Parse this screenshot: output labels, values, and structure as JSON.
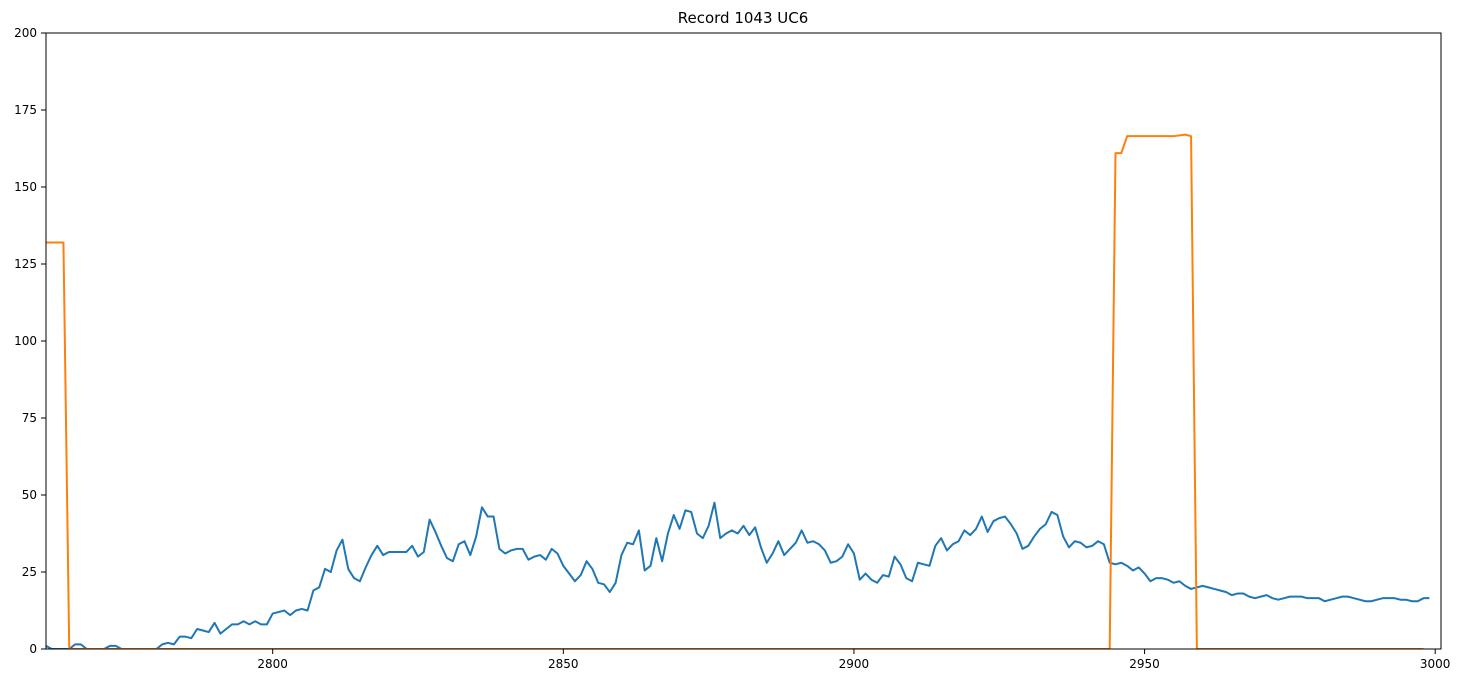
{
  "chart_data": {
    "type": "line",
    "title": "Record 1043 UC6",
    "xlabel": "",
    "ylabel": "",
    "xlim": [
      2761,
      3001
    ],
    "ylim": [
      0,
      200
    ],
    "xticks": [
      2800,
      2850,
      2900,
      2950,
      3000
    ],
    "yticks": [
      0,
      25,
      50,
      75,
      100,
      125,
      150,
      175,
      200
    ],
    "grid": false,
    "colors": [
      "#1f77b4",
      "#ff7f0e"
    ],
    "series": [
      {
        "x_start": 2761,
        "x_step": 1,
        "values": [
          1,
          0,
          0,
          0,
          0,
          1.5,
          1.5,
          0,
          0,
          0,
          0,
          1,
          1,
          0,
          0,
          0,
          0,
          0,
          0,
          0,
          1.5,
          2,
          1.5,
          4,
          4,
          3.5,
          6.5,
          6,
          5.5,
          8.5,
          5,
          6.5,
          8,
          8,
          9,
          8,
          9,
          8,
          8,
          11.5,
          12,
          12.5,
          11,
          12.5,
          13,
          12.5,
          19,
          20,
          26,
          25,
          32,
          35.5,
          26,
          23,
          22,
          26.5,
          30.5,
          33.5,
          30.5,
          31.5,
          31.5,
          31.5,
          31.5,
          33.5,
          30,
          31.5,
          42,
          38,
          33.5,
          29.5,
          28.5,
          34,
          35,
          30.5,
          36.5,
          46,
          43,
          43,
          32.5,
          31,
          32,
          32.5,
          32.5,
          29,
          30,
          30.5,
          29,
          32.5,
          31,
          27,
          24.5,
          22,
          24,
          28.5,
          26,
          21.5,
          21,
          18.5,
          21.5,
          30.5,
          34.5,
          34,
          38.5,
          25.5,
          27,
          36,
          28.5,
          37.5,
          43.5,
          39,
          45,
          44.5,
          37.5,
          36,
          40,
          47.5,
          36,
          37.5,
          38.5,
          37.5,
          40,
          37,
          39.5,
          33,
          28,
          31,
          35,
          30.5,
          32.5,
          34.5,
          38.5,
          34.5,
          35,
          34,
          32,
          28,
          28.5,
          30,
          34,
          31,
          22.5,
          24.5,
          22.5,
          21.5,
          24,
          23.5,
          30,
          27.5,
          23,
          22,
          28,
          27.5,
          27,
          33.5,
          36,
          32,
          34,
          35,
          38.5,
          37,
          39,
          43,
          38,
          41.5,
          42.5,
          43,
          40.5,
          37.5,
          32.5,
          33.5,
          36.5,
          39,
          40.5,
          44.5,
          43.5,
          36.5,
          33,
          35,
          34.5,
          33,
          33.5,
          35,
          34,
          28,
          27.5,
          28,
          27,
          25.5,
          26.5,
          24.5,
          22,
          23,
          23,
          22.5,
          21.5,
          22,
          20.5,
          19.5,
          20,
          20.5,
          20,
          19.5,
          19,
          18.5,
          17.5,
          18,
          18,
          17,
          16.5,
          17,
          17.5,
          16.5,
          16,
          16.5,
          17,
          17,
          17,
          16.5,
          16.5,
          16.5,
          15.5,
          16,
          16.5,
          17,
          17,
          16.5,
          16,
          15.5,
          15.5,
          16,
          16.5,
          16.5,
          16.5,
          16,
          16,
          15.5,
          15.5,
          16.5,
          16.5
        ]
      },
      {
        "points": [
          [
            2761,
            132
          ],
          [
            2764,
            132
          ],
          [
            2764,
            132
          ],
          [
            2765,
            0
          ],
          [
            2944,
            0
          ],
          [
            2945,
            161
          ],
          [
            2946,
            161
          ],
          [
            2947,
            166.5
          ],
          [
            2955,
            166.5
          ],
          [
            2957,
            167
          ],
          [
            2958,
            166.5
          ],
          [
            2959,
            0
          ],
          [
            2998,
            0
          ]
        ]
      }
    ]
  }
}
